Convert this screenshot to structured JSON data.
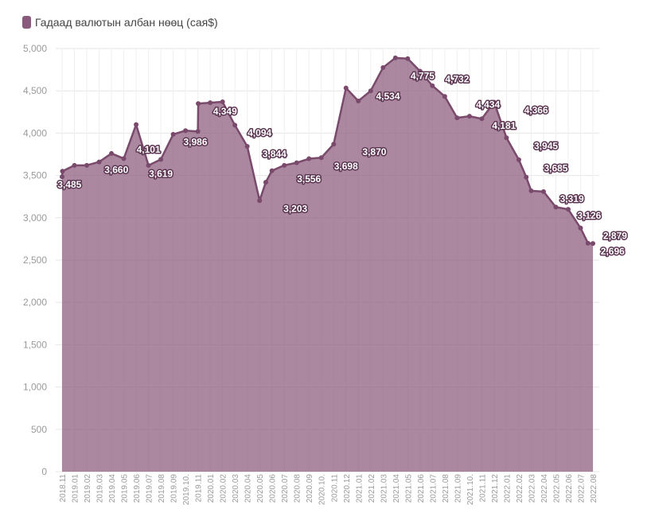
{
  "chart_data": {
    "type": "area",
    "title": "",
    "xlabel": "",
    "ylabel": "",
    "ylim": [
      0,
      5000
    ],
    "yticks": [
      0,
      500,
      1000,
      1500,
      2000,
      2500,
      3000,
      3500,
      4000,
      4500,
      5000
    ],
    "ytick_labels": [
      "0",
      "500",
      "1,000",
      "1,500",
      "2,000",
      "2,500",
      "3,000",
      "3,500",
      "4,000",
      "4,500",
      "5,000"
    ],
    "grid": true,
    "legend_position": "top-left",
    "categories": [
      "2018.11",
      "2019.01",
      "2019.02",
      "2019.03",
      "2019.04",
      "2019.05",
      "2019.06",
      "2019.07",
      "2019.08",
      "2019.09",
      "2019.10.",
      "2019.11",
      "2020.01",
      "2020.02",
      "2020.03",
      "2020.04",
      "2020.05",
      "2020.06",
      "2020.07",
      "2020.08",
      "2020.09",
      "2020.10.",
      "2020.11",
      "2020.12",
      "2021.01",
      "2021.02",
      "2021.03",
      "2021.04",
      "2021.05",
      "2021.06",
      "2021.07",
      "2021.08",
      "2021.09",
      "2021.10.",
      "2021.11",
      "2021.12",
      "2022.01",
      "2022.02",
      "2022.03",
      "2022.04",
      "2022.05",
      "2022.06",
      "2022.07",
      "2022.08"
    ],
    "x": [
      0,
      0.03,
      1,
      2,
      3,
      4,
      5,
      6,
      7,
      8,
      9,
      10,
      11,
      11.03,
      12,
      13,
      14,
      15,
      16,
      16.5,
      17,
      18,
      19,
      20,
      21,
      22,
      23,
      24,
      25,
      26,
      27,
      28,
      29,
      30,
      31,
      32,
      33,
      34,
      35,
      36,
      37,
      37.6,
      38,
      39,
      40,
      41,
      42,
      42.6,
      43
    ],
    "series": [
      {
        "name": "Гадаад валютын албан нөөц (сая$)",
        "color": "#8a5a7c",
        "values": [
          3485,
          3550,
          3620,
          3620,
          3660,
          3760,
          3700,
          4101,
          3619,
          3690,
          3986,
          4030,
          4020,
          4349,
          4360,
          4370,
          4094,
          3844,
          3203,
          3420,
          3556,
          3620,
          3650,
          3698,
          3710,
          3870,
          4534,
          4380,
          4500,
          4775,
          4890,
          4880,
          4732,
          4560,
          4434,
          4181,
          4200,
          4170,
          4366,
          3945,
          3685,
          3480,
          3319,
          3310,
          3126,
          3100,
          2879,
          2700,
          2696
        ]
      }
    ],
    "data_labels": [
      {
        "text": "3,485",
        "x": 0.6,
        "y": 3355
      },
      {
        "text": "3,660",
        "x": 4.4,
        "y": 3530
      },
      {
        "text": "4,101",
        "x": 7.0,
        "y": 3770
      },
      {
        "text": "3,619",
        "x": 8.0,
        "y": 3480
      },
      {
        "text": "3,986",
        "x": 10.8,
        "y": 3860
      },
      {
        "text": "4,349",
        "x": 13.2,
        "y": 4220
      },
      {
        "text": "4,094",
        "x": 16.0,
        "y": 3965
      },
      {
        "text": "3,844",
        "x": 17.2,
        "y": 3715
      },
      {
        "text": "3,203",
        "x": 18.9,
        "y": 3070
      },
      {
        "text": "3,556",
        "x": 20.0,
        "y": 3420
      },
      {
        "text": "3,698",
        "x": 23.0,
        "y": 3570
      },
      {
        "text": "3,870",
        "x": 25.3,
        "y": 3740
      },
      {
        "text": "4,534",
        "x": 26.4,
        "y": 4400
      },
      {
        "text": "4,775",
        "x": 29.2,
        "y": 4640
      },
      {
        "text": "4,732",
        "x": 32.0,
        "y": 4600
      },
      {
        "text": "4,434",
        "x": 34.5,
        "y": 4300
      },
      {
        "text": "4,181",
        "x": 35.8,
        "y": 4050
      },
      {
        "text": "4,366",
        "x": 38.4,
        "y": 4235
      },
      {
        "text": "3,945",
        "x": 39.2,
        "y": 3810
      },
      {
        "text": "3,685",
        "x": 40.0,
        "y": 3550
      },
      {
        "text": "3,319",
        "x": 41.3,
        "y": 3185
      },
      {
        "text": "3,126",
        "x": 42.7,
        "y": 2990
      },
      {
        "text": "2,879",
        "x": 44.8,
        "y": 2750
      },
      {
        "text": "2,696",
        "x": 44.6,
        "y": 2565
      }
    ]
  },
  "legend": {
    "label": "Гадаад валютын албан нөөц (сая$)",
    "color": "#8a5a7c"
  }
}
